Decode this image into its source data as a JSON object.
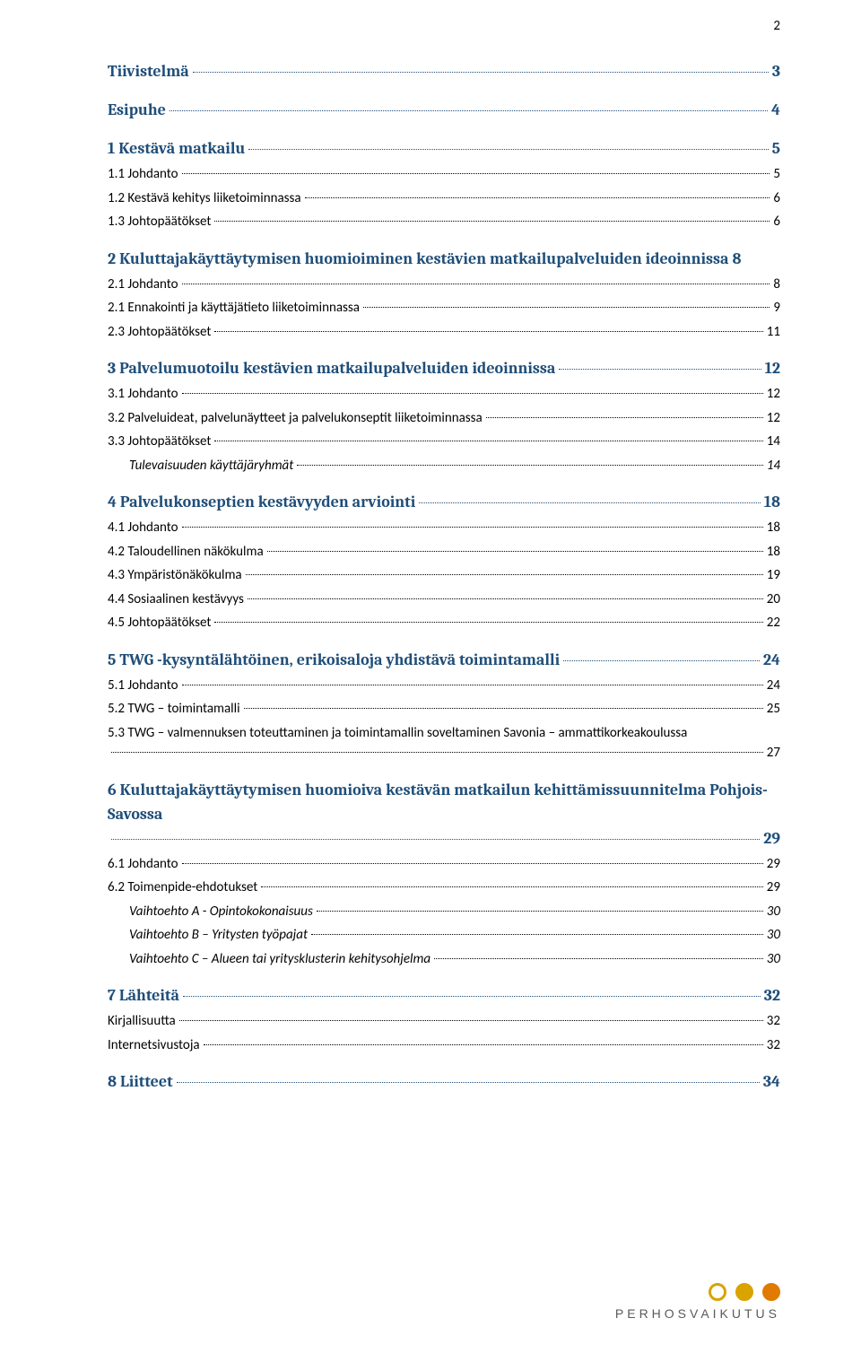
{
  "page_number": "2",
  "colors": {
    "heading": "#1f4e79",
    "body": "#000000",
    "leader": "#000000",
    "logo_text": "#5a5a5a",
    "circle1_border": "#d9a300",
    "circle1_fill": "#ffffff",
    "circle2_border": "#d9a300",
    "circle2_fill": "#d9a300",
    "circle3_border": "#e07b00",
    "circle3_fill": "#e07b00"
  },
  "footer_logo_text": "PERHOSVAIKUTUS",
  "toc": [
    {
      "level": 1,
      "label": "Tiivistelmä",
      "page": "3"
    },
    {
      "level": 1,
      "label": "Esipuhe",
      "page": "4"
    },
    {
      "level": 1,
      "label": "1 Kestävä matkailu",
      "page": "5"
    },
    {
      "level": 2,
      "label": "1.1 Johdanto",
      "page": "5"
    },
    {
      "level": 2,
      "label": "1.2 Kestävä kehitys liiketoiminnassa",
      "page": "6"
    },
    {
      "level": 2,
      "label": "1.3 Johtopäätökset",
      "page": "6"
    },
    {
      "level": 1,
      "label": "2 Kuluttajakäyttäytymisen huomioiminen kestävien matkailupalveluiden ideoinnissa",
      "page": "8",
      "nobreak_page_before_leader": true
    },
    {
      "level": 2,
      "label": "2.1 Johdanto",
      "page": "8"
    },
    {
      "level": 2,
      "label": "2.1 Ennakointi ja käyttäjätieto liiketoiminnassa",
      "page": "9"
    },
    {
      "level": 2,
      "label": "2.3 Johtopäätökset",
      "page": "11"
    },
    {
      "level": 1,
      "label": "3 Palvelumuotoilu kestävien matkailupalveluiden ideoinnissa",
      "page": "12"
    },
    {
      "level": 2,
      "label": "3.1 Johdanto",
      "page": "12"
    },
    {
      "level": 2,
      "label": "3.2 Palveluideat, palvelunäytteet ja palvelukonseptit liiketoiminnassa",
      "page": "12"
    },
    {
      "level": 2,
      "label": "3.3 Johtopäätökset",
      "page": "14"
    },
    {
      "level": 3,
      "label": "Tulevaisuuden käyttäjäryhmät",
      "page": "14"
    },
    {
      "level": 1,
      "label": "4 Palvelukonseptien kestävyyden arviointi",
      "page": "18"
    },
    {
      "level": 2,
      "label": "4.1 Johdanto",
      "page": "18"
    },
    {
      "level": 2,
      "label": "4.2 Taloudellinen näkökulma",
      "page": "18"
    },
    {
      "level": 2,
      "label": "4.3 Ympäristönäkökulma",
      "page": "19"
    },
    {
      "level": 2,
      "label": "4.4 Sosiaalinen kestävyys",
      "page": "20"
    },
    {
      "level": 2,
      "label": "4.5 Johtopäätökset",
      "page": "22"
    },
    {
      "level": 1,
      "label": "5 TWG -kysyntälähtöinen, erikoisaloja yhdistävä toimintamalli",
      "page": "24"
    },
    {
      "level": 2,
      "label": "5.1 Johdanto",
      "page": "24"
    },
    {
      "level": 2,
      "label": "5.2 TWG – toimintamalli",
      "page": "25"
    },
    {
      "level": 2,
      "label": "5.3 TWG – valmennuksen toteuttaminen ja toimintamallin soveltaminen Savonia – ammattikorkeakoulussa",
      "page": "27",
      "wrap": true
    },
    {
      "level": 1,
      "label": "6 Kuluttajakäyttäytymisen huomioiva kestävän matkailun kehittämissuunnitelma Pohjois-Savossa",
      "page": "29",
      "wrap": true
    },
    {
      "level": 2,
      "label": "6.1 Johdanto",
      "page": "29"
    },
    {
      "level": 2,
      "label": "6.2 Toimenpide-ehdotukset",
      "page": "29"
    },
    {
      "level": 3,
      "label": "Vaihtoehto A  - Opintokokonaisuus",
      "page": "30"
    },
    {
      "level": 3,
      "label": "Vaihtoehto B – Yritysten työpajat",
      "page": "30"
    },
    {
      "level": 3,
      "label": "Vaihtoehto C – Alueen tai yritysklusterin kehitysohjelma",
      "page": "30"
    },
    {
      "level": 1,
      "label": "7 Lähteitä",
      "page": "32"
    },
    {
      "level": 2,
      "label": "Kirjallisuutta",
      "page": "32"
    },
    {
      "level": 2,
      "label": "Internetsivustoja",
      "page": "32"
    },
    {
      "level": 1,
      "label": "8 Liitteet",
      "page": "34"
    }
  ]
}
